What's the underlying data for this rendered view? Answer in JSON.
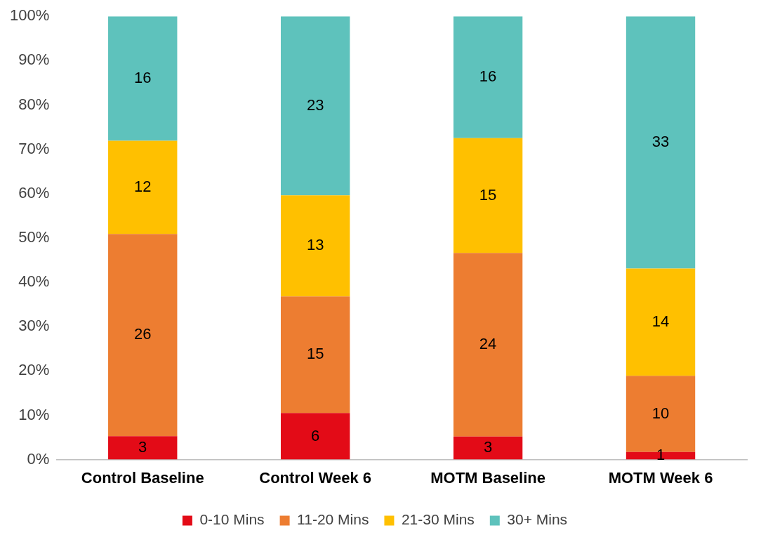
{
  "chart_data": {
    "type": "bar",
    "stacked": true,
    "categories": [
      "Control Baseline",
      "Control Week 6",
      "MOTM Baseline",
      "MOTM Week 6"
    ],
    "series": [
      {
        "name": "0-10 Mins",
        "color": "#e30b17",
        "values": [
          5.3,
          10.5,
          5.2,
          1.7
        ]
      },
      {
        "name": "11-20 Mins",
        "color": "#ed7d31",
        "values": [
          45.6,
          26.3,
          41.4,
          17.2
        ]
      },
      {
        "name": "21-30 Mins",
        "color": "#ffc000",
        "values": [
          21.0,
          22.8,
          25.9,
          24.2
        ]
      },
      {
        "name": "30+ Mins",
        "color": "#5ec2bc",
        "values": [
          28.1,
          40.4,
          27.5,
          56.9
        ]
      }
    ],
    "annotations": [
      "3",
      "26",
      "12",
      "16",
      "6",
      "15",
      "13",
      "23",
      "3",
      "24",
      "15",
      "16",
      "1",
      "10",
      "14",
      "33"
    ],
    "ylim": [
      0,
      100
    ],
    "yticks": [
      {
        "value": 0,
        "label": "0%"
      },
      {
        "value": 10,
        "label": "10%"
      },
      {
        "value": 20,
        "label": "20%"
      },
      {
        "value": 30,
        "label": "30%"
      },
      {
        "value": 40,
        "label": "40%"
      },
      {
        "value": 50,
        "label": "50%"
      },
      {
        "value": 60,
        "label": "60%"
      },
      {
        "value": 70,
        "label": "70%"
      },
      {
        "value": 80,
        "label": "80%"
      },
      {
        "value": 90,
        "label": "90%"
      },
      {
        "value": 100,
        "label": "100%"
      }
    ],
    "grid": false,
    "legend": "bottom"
  }
}
